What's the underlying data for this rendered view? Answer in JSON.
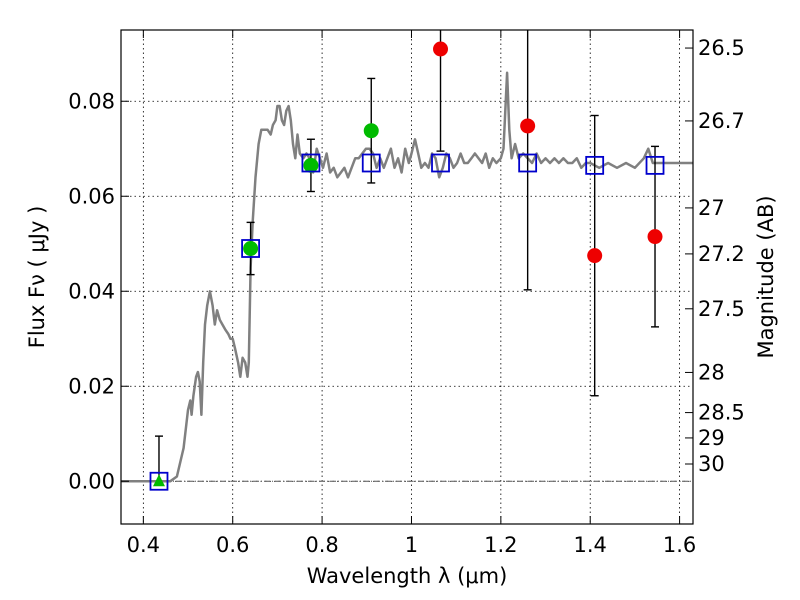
{
  "chart_data": {
    "type": "scatter",
    "xlabel": "Wavelength  λ (μm)",
    "ylabel": "Flux  Fν  ( μJy )",
    "ylabel_right": "Magnitude (AB)",
    "xlim": [
      0.35,
      1.63
    ],
    "ylim": [
      -0.009,
      0.095
    ],
    "grid": true,
    "x_ticks": [
      {
        "value": 0.4,
        "label": "0.4"
      },
      {
        "value": 0.6,
        "label": "0.6"
      },
      {
        "value": 0.8,
        "label": "0.8"
      },
      {
        "value": 1.0,
        "label": "1"
      },
      {
        "value": 1.2,
        "label": "1.2"
      },
      {
        "value": 1.4,
        "label": "1.4"
      },
      {
        "value": 1.6,
        "label": "1.6"
      }
    ],
    "y_ticks": [
      {
        "value": 0.0,
        "label": "0.00"
      },
      {
        "value": 0.02,
        "label": "0.02"
      },
      {
        "value": 0.04,
        "label": "0.04"
      },
      {
        "value": 0.06,
        "label": "0.06"
      },
      {
        "value": 0.08,
        "label": "0.08"
      }
    ],
    "mag_ticks": [
      {
        "mag": 26.5,
        "label": "26.5"
      },
      {
        "mag": 26.7,
        "label": "26.7"
      },
      {
        "mag": 27.0,
        "label": "27"
      },
      {
        "mag": 27.2,
        "label": "27.2"
      },
      {
        "mag": 27.5,
        "label": "27.5"
      },
      {
        "mag": 28.0,
        "label": "28"
      },
      {
        "mag": 28.5,
        "label": "28.5"
      },
      {
        "mag": 29.0,
        "label": "29"
      },
      {
        "mag": 30.0,
        "label": "30"
      }
    ],
    "zero_line": {
      "y": 0.0,
      "color": "#555555"
    },
    "model_sed": {
      "color": "#808080",
      "points": [
        [
          0.35,
          0.0
        ],
        [
          0.46,
          0.0
        ],
        [
          0.475,
          0.001
        ],
        [
          0.49,
          0.007
        ],
        [
          0.5,
          0.015
        ],
        [
          0.505,
          0.017
        ],
        [
          0.508,
          0.014
        ],
        [
          0.512,
          0.018
        ],
        [
          0.518,
          0.022
        ],
        [
          0.522,
          0.023
        ],
        [
          0.526,
          0.021
        ],
        [
          0.53,
          0.014
        ],
        [
          0.534,
          0.025
        ],
        [
          0.538,
          0.033
        ],
        [
          0.543,
          0.037
        ],
        [
          0.549,
          0.04
        ],
        [
          0.555,
          0.037
        ],
        [
          0.56,
          0.033
        ],
        [
          0.565,
          0.036
        ],
        [
          0.571,
          0.034
        ],
        [
          0.577,
          0.033
        ],
        [
          0.583,
          0.032
        ],
        [
          0.59,
          0.031
        ],
        [
          0.595,
          0.03
        ],
        [
          0.6,
          0.03
        ],
        [
          0.605,
          0.028
        ],
        [
          0.612,
          0.025
        ],
        [
          0.617,
          0.022
        ],
        [
          0.622,
          0.026
        ],
        [
          0.628,
          0.025
        ],
        [
          0.633,
          0.022
        ],
        [
          0.636,
          0.025
        ],
        [
          0.64,
          0.045
        ],
        [
          0.645,
          0.055
        ],
        [
          0.651,
          0.064
        ],
        [
          0.658,
          0.071
        ],
        [
          0.664,
          0.074
        ],
        [
          0.671,
          0.074
        ],
        [
          0.678,
          0.074
        ],
        [
          0.685,
          0.073
        ],
        [
          0.69,
          0.075
        ],
        [
          0.696,
          0.076
        ],
        [
          0.7,
          0.079
        ],
        [
          0.705,
          0.079
        ],
        [
          0.71,
          0.076
        ],
        [
          0.715,
          0.075
        ],
        [
          0.72,
          0.078
        ],
        [
          0.725,
          0.079
        ],
        [
          0.73,
          0.076
        ],
        [
          0.735,
          0.071
        ],
        [
          0.74,
          0.068
        ],
        [
          0.745,
          0.073
        ],
        [
          0.75,
          0.069
        ],
        [
          0.758,
          0.068
        ],
        [
          0.765,
          0.069
        ],
        [
          0.772,
          0.068
        ],
        [
          0.78,
          0.065
        ],
        [
          0.788,
          0.07
        ],
        [
          0.795,
          0.068
        ],
        [
          0.802,
          0.066
        ],
        [
          0.81,
          0.069
        ],
        [
          0.818,
          0.065
        ],
        [
          0.826,
          0.066
        ],
        [
          0.834,
          0.064
        ],
        [
          0.842,
          0.065
        ],
        [
          0.85,
          0.066
        ],
        [
          0.858,
          0.064
        ],
        [
          0.866,
          0.066
        ],
        [
          0.874,
          0.068
        ],
        [
          0.882,
          0.068
        ],
        [
          0.89,
          0.069
        ],
        [
          0.898,
          0.07
        ],
        [
          0.906,
          0.07
        ],
        [
          0.914,
          0.069
        ],
        [
          0.922,
          0.066
        ],
        [
          0.93,
          0.068
        ],
        [
          0.938,
          0.066
        ],
        [
          0.946,
          0.068
        ],
        [
          0.954,
          0.07
        ],
        [
          0.962,
          0.066
        ],
        [
          0.97,
          0.068
        ],
        [
          0.978,
          0.065
        ],
        [
          0.986,
          0.07
        ],
        [
          0.994,
          0.067
        ],
        [
          1.0,
          0.069
        ],
        [
          1.008,
          0.072
        ],
        [
          1.015,
          0.069
        ],
        [
          1.022,
          0.066
        ],
        [
          1.03,
          0.067
        ],
        [
          1.038,
          0.066
        ],
        [
          1.046,
          0.069
        ],
        [
          1.054,
          0.068
        ],
        [
          1.062,
          0.064
        ],
        [
          1.07,
          0.066
        ],
        [
          1.078,
          0.069
        ],
        [
          1.086,
          0.068
        ],
        [
          1.094,
          0.066
        ],
        [
          1.102,
          0.067
        ],
        [
          1.11,
          0.069
        ],
        [
          1.118,
          0.067
        ],
        [
          1.126,
          0.067
        ],
        [
          1.134,
          0.068
        ],
        [
          1.142,
          0.069
        ],
        [
          1.15,
          0.068
        ],
        [
          1.158,
          0.067
        ],
        [
          1.166,
          0.069
        ],
        [
          1.174,
          0.066
        ],
        [
          1.182,
          0.068
        ],
        [
          1.19,
          0.067
        ],
        [
          1.2,
          0.068
        ],
        [
          1.206,
          0.07
        ],
        [
          1.21,
          0.078
        ],
        [
          1.214,
          0.086
        ],
        [
          1.219,
          0.074
        ],
        [
          1.224,
          0.068
        ],
        [
          1.232,
          0.071
        ],
        [
          1.24,
          0.068
        ],
        [
          1.25,
          0.069
        ],
        [
          1.26,
          0.068
        ],
        [
          1.27,
          0.067
        ],
        [
          1.28,
          0.069
        ],
        [
          1.29,
          0.067
        ],
        [
          1.3,
          0.068
        ],
        [
          1.31,
          0.067
        ],
        [
          1.32,
          0.068
        ],
        [
          1.33,
          0.067
        ],
        [
          1.34,
          0.068
        ],
        [
          1.35,
          0.067
        ],
        [
          1.36,
          0.067
        ],
        [
          1.37,
          0.068
        ],
        [
          1.38,
          0.066
        ],
        [
          1.39,
          0.067
        ],
        [
          1.4,
          0.067
        ],
        [
          1.42,
          0.066
        ],
        [
          1.44,
          0.067
        ],
        [
          1.46,
          0.066
        ],
        [
          1.48,
          0.067
        ],
        [
          1.5,
          0.066
        ],
        [
          1.52,
          0.068
        ],
        [
          1.53,
          0.07
        ],
        [
          1.54,
          0.067
        ],
        [
          1.56,
          0.067
        ],
        [
          1.58,
          0.067
        ],
        [
          1.6,
          0.067
        ],
        [
          1.63,
          0.067
        ]
      ]
    },
    "model_photometry": {
      "color": "#0000cc",
      "points": [
        {
          "x": 0.435,
          "y": 0.0
        },
        {
          "x": 0.64,
          "y": 0.049
        },
        {
          "x": 0.775,
          "y": 0.067
        },
        {
          "x": 0.91,
          "y": 0.067
        },
        {
          "x": 1.065,
          "y": 0.067
        },
        {
          "x": 1.26,
          "y": 0.067
        },
        {
          "x": 1.41,
          "y": 0.0665
        },
        {
          "x": 1.545,
          "y": 0.0665
        }
      ]
    },
    "observed": {
      "green_color": "#00bb00",
      "red_color": "#ee0000",
      "points": [
        {
          "x": 0.435,
          "y": 0.0,
          "err_low": 0.0,
          "err_high": 0.0095,
          "marker": "triangle",
          "color": "green"
        },
        {
          "x": 0.64,
          "y": 0.049,
          "err_low": 0.0055,
          "err_high": 0.0055,
          "marker": "circle",
          "color": "green"
        },
        {
          "x": 0.775,
          "y": 0.0665,
          "err_low": 0.0055,
          "err_high": 0.0055,
          "marker": "circle",
          "color": "green"
        },
        {
          "x": 0.91,
          "y": 0.0738,
          "err_low": 0.011,
          "err_high": 0.011,
          "marker": "circle",
          "color": "green"
        },
        {
          "x": 1.065,
          "y": 0.091,
          "err_low": 0.0215,
          "err_high": 0.0215,
          "marker": "circle",
          "color": "red"
        },
        {
          "x": 1.26,
          "y": 0.0748,
          "err_low": 0.0345,
          "err_high": 0.0345,
          "marker": "circle",
          "color": "red"
        },
        {
          "x": 1.41,
          "y": 0.0475,
          "err_low": 0.0295,
          "err_high": 0.0295,
          "marker": "circle",
          "color": "red"
        },
        {
          "x": 1.545,
          "y": 0.0515,
          "err_low": 0.019,
          "err_high": 0.019,
          "marker": "circle",
          "color": "red"
        }
      ]
    }
  }
}
